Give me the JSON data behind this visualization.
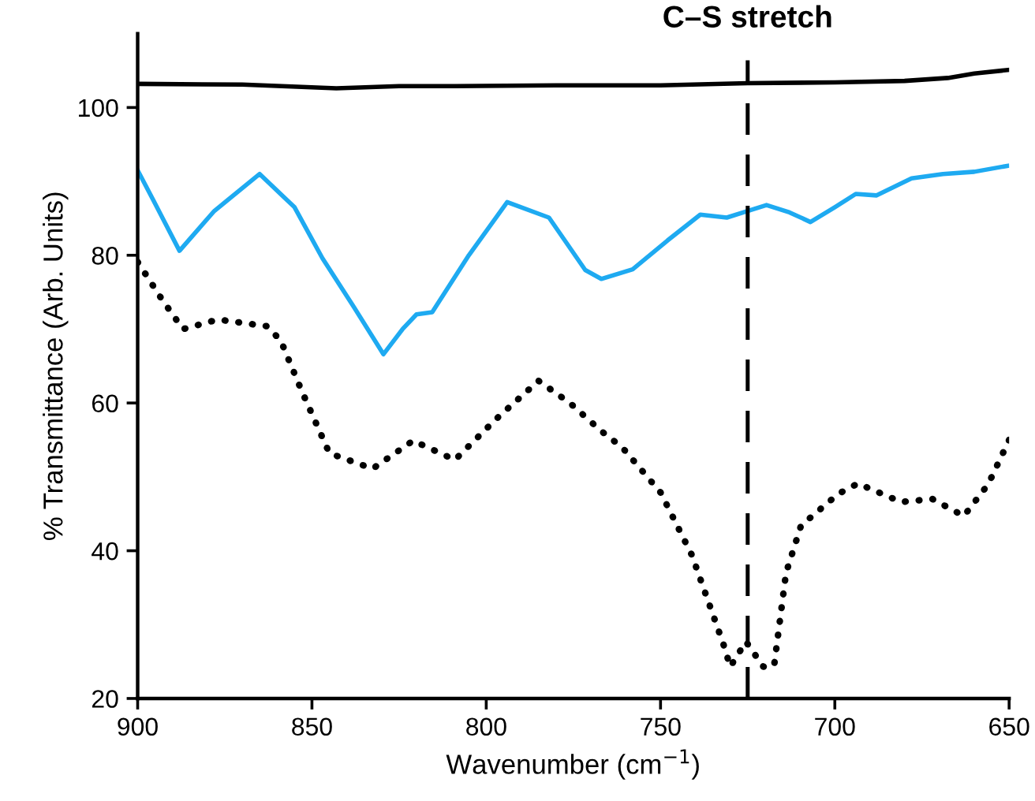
{
  "chart_data": {
    "type": "line",
    "xlabel": "Wavenumber (cm$^{−1}$)",
    "ylabel": "% Transmittance (Arb. Units)",
    "xlim": [
      900,
      650
    ],
    "ylim": [
      20,
      110
    ],
    "xticks": [
      900,
      850,
      800,
      750,
      700,
      650
    ],
    "yticks": [
      20,
      40,
      60,
      80,
      100
    ],
    "grid": false,
    "marker": "none",
    "series": [
      {
        "color": "#000000",
        "line_style": "solid",
        "x": [
          900,
          870,
          843,
          825,
          809,
          780,
          750,
          725,
          700,
          680,
          667.6,
          660,
          650
        ],
        "values": [
          103.2,
          103.1,
          102.6,
          102.9,
          102.9,
          103,
          103,
          103.3,
          103.4,
          103.6,
          104,
          104.6,
          105.1
        ]
      },
      {
        "color": "#1eaaf1",
        "line_style": "solid",
        "x": [
          900,
          895,
          888,
          878,
          865,
          855,
          847,
          838,
          829.5,
          824,
          820,
          815.5,
          805,
          794,
          782,
          771.6,
          767,
          758,
          748,
          738.6,
          731,
          725,
          719.6,
          713,
          707,
          700,
          694,
          688,
          678,
          669,
          660,
          650.5
        ],
        "values": [
          91.5,
          87,
          80.6,
          86,
          91,
          86.5,
          79.6,
          73,
          66.6,
          70,
          72,
          72.3,
          80,
          87.2,
          85.1,
          78,
          76.8,
          78.1,
          82,
          85.5,
          85.1,
          86,
          86.8,
          85.8,
          84.5,
          86.5,
          88.3,
          88.1,
          90.4,
          91,
          91.3,
          92.1
        ]
      },
      {
        "color": "#000000",
        "line_style": "dotted",
        "x": [
          900,
          893,
          887,
          877,
          863,
          859,
          853,
          845,
          832.6,
          821,
          809,
          797,
          785,
          776,
          767,
          761,
          750,
          741,
          732,
          730,
          725.5,
          720.5,
          717.4,
          714,
          709.7,
          699,
          693.4,
          681,
          672,
          663,
          656,
          650
        ],
        "values": [
          79.1,
          74,
          70,
          71.3,
          70.4,
          68.5,
          61.7,
          53.2,
          51.1,
          54.9,
          52.3,
          57.9,
          63,
          60,
          56.2,
          54,
          47.9,
          39.4,
          27.4,
          24.3,
          27.7,
          24.3,
          24.5,
          37,
          43.4,
          47.7,
          49.1,
          46.6,
          47,
          44.7,
          49,
          55
        ]
      }
    ],
    "ref_lines": [
      {
        "axis": "x",
        "value": 725,
        "label": "C–S stretch",
        "color": "#000000",
        "line_style": "dashed"
      }
    ]
  }
}
